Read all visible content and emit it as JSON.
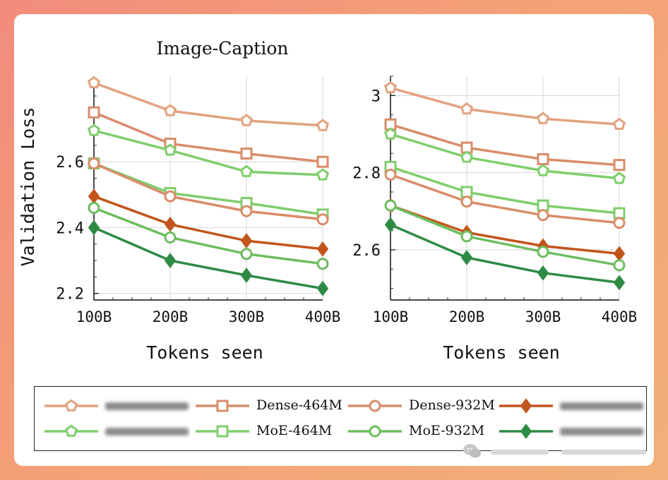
{
  "chart_data": [
    {
      "type": "line",
      "title": "Image-Caption",
      "xlabel": "Tokens seen",
      "ylabel": "Validation Loss",
      "categories": [
        "100B",
        "200B",
        "300B",
        "400B"
      ],
      "yticks": [
        "2.2",
        "2.4",
        "2.6"
      ],
      "ylim": [
        2.18,
        2.86
      ],
      "grid": true,
      "series": [
        {
          "name": "",
          "color": "#e3a27f",
          "marker": "pentagon",
          "values": [
            2.84,
            2.755,
            2.725,
            2.71
          ]
        },
        {
          "name": "",
          "color": "#d98c6a",
          "marker": "square",
          "values": [
            2.75,
            2.655,
            2.625,
            2.6
          ]
        },
        {
          "name": "",
          "color": "#7fce6c",
          "marker": "pentagon",
          "values": [
            2.695,
            2.635,
            2.57,
            2.56
          ]
        },
        {
          "name": "",
          "color": "#7fce6c",
          "marker": "square",
          "values": [
            2.595,
            2.505,
            2.475,
            2.44
          ]
        },
        {
          "name": "",
          "color": "#d98c6a",
          "marker": "circle",
          "values": [
            2.595,
            2.495,
            2.45,
            2.425
          ]
        },
        {
          "name": "",
          "color": "#c2551b",
          "marker": "diamond",
          "values": [
            2.495,
            2.41,
            2.36,
            2.335
          ]
        },
        {
          "name": "",
          "color": "#6cbd5e",
          "marker": "circle",
          "values": [
            2.46,
            2.37,
            2.32,
            2.29
          ]
        },
        {
          "name": "",
          "color": "#2e8b45",
          "marker": "diamond",
          "values": [
            2.4,
            2.3,
            2.255,
            2.215
          ]
        }
      ]
    },
    {
      "type": "line",
      "title": "",
      "xlabel": "Tokens seen",
      "ylabel": "",
      "categories": [
        "100B",
        "200B",
        "300B",
        "400B"
      ],
      "yticks": [
        "2.6",
        "2.8",
        "3"
      ],
      "ylim": [
        2.47,
        3.05
      ],
      "grid": true,
      "series": [
        {
          "name": "",
          "color": "#e3a27f",
          "marker": "pentagon",
          "values": [
            3.02,
            2.965,
            2.94,
            2.925
          ]
        },
        {
          "name": "",
          "color": "#d98c6a",
          "marker": "square",
          "values": [
            2.925,
            2.865,
            2.835,
            2.82
          ]
        },
        {
          "name": "",
          "color": "#7fce6c",
          "marker": "pentagon",
          "values": [
            2.9,
            2.84,
            2.805,
            2.785
          ]
        },
        {
          "name": "",
          "color": "#7fce6c",
          "marker": "square",
          "values": [
            2.815,
            2.75,
            2.715,
            2.695
          ]
        },
        {
          "name": "",
          "color": "#d98c6a",
          "marker": "circle",
          "values": [
            2.795,
            2.725,
            2.69,
            2.67
          ]
        },
        {
          "name": "",
          "color": "#c2551b",
          "marker": "diamond",
          "values": [
            2.715,
            2.645,
            2.61,
            2.59
          ]
        },
        {
          "name": "",
          "color": "#6cbd5e",
          "marker": "circle",
          "values": [
            2.715,
            2.635,
            2.595,
            2.56
          ]
        },
        {
          "name": "",
          "color": "#2e8b45",
          "marker": "diamond",
          "values": [
            2.665,
            2.58,
            2.54,
            2.515
          ]
        }
      ]
    }
  ],
  "legend": {
    "rows": [
      [
        {
          "label": "",
          "color": "#e3a27f",
          "marker": "pentagon",
          "blurred": true
        },
        {
          "label": "Dense-464M",
          "color": "#d98c6a",
          "marker": "square"
        },
        {
          "label": "Dense-932M",
          "color": "#d98c6a",
          "marker": "circle"
        },
        {
          "label": "",
          "color": "#c2551b",
          "marker": "diamond",
          "blurred": true
        }
      ],
      [
        {
          "label": "",
          "color": "#7fce6c",
          "marker": "pentagon",
          "blurred": true
        },
        {
          "label": "MoE-464M",
          "color": "#7fce6c",
          "marker": "square"
        },
        {
          "label": "MoE-932M",
          "color": "#6cbd5e",
          "marker": "circle"
        },
        {
          "label": "",
          "color": "#2e8b45",
          "marker": "diamond",
          "blurred": true
        }
      ]
    ]
  },
  "watermark": {
    "icon": "wechat-icon"
  }
}
